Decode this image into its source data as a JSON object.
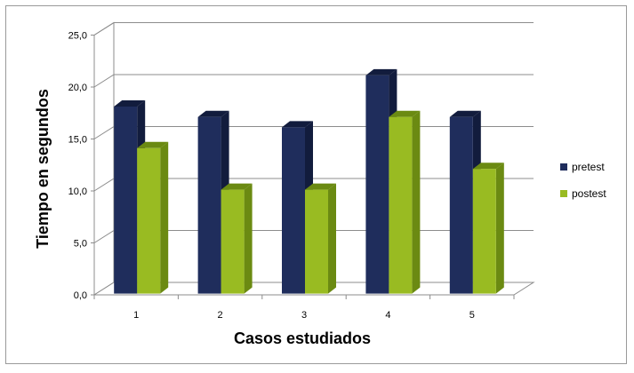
{
  "chart_data": {
    "type": "bar",
    "categories": [
      "1",
      "2",
      "3",
      "4",
      "5"
    ],
    "series": [
      {
        "name": "pretest",
        "values": [
          18,
          17,
          16,
          21,
          17
        ],
        "color": "#1f2d5c",
        "side_color": "#121c3d"
      },
      {
        "name": "postest",
        "values": [
          14,
          10,
          10,
          17,
          12
        ],
        "color": "#99bb22",
        "side_color": "#6b8a12"
      }
    ],
    "xlabel": "Casos estudiados",
    "ylabel": "Tiempo en segundos",
    "ylim": [
      0,
      25
    ],
    "yticks": [
      "0,0",
      "5,0",
      "10,0",
      "15,0",
      "20,0",
      "25,0"
    ],
    "ytick_values": [
      0,
      5,
      10,
      15,
      20,
      25
    ],
    "grid": true,
    "legend_position": "right",
    "style": "3d-clustered-column"
  }
}
